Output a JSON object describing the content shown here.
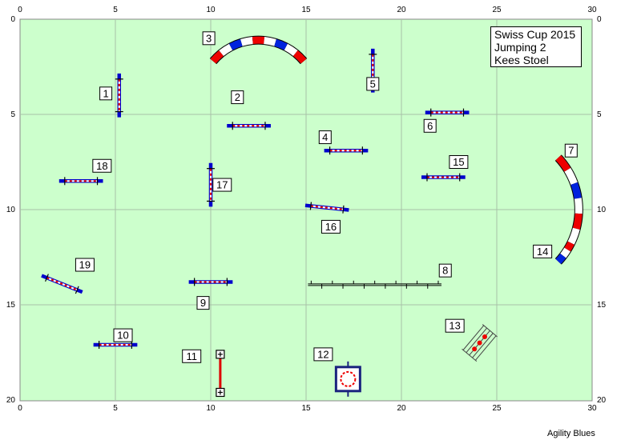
{
  "course": {
    "title_lines": [
      "Swiss Cup 2015",
      "Jumping 2",
      "Kees Stoel"
    ],
    "credit": "Agility Blues",
    "x_axis_ticks": [
      "0",
      "5",
      "10",
      "15",
      "20",
      "25",
      "30"
    ],
    "y_axis_ticks": [
      "0",
      "5",
      "10",
      "15",
      "20"
    ],
    "arena_width_m": 30,
    "arena_height_m": 20,
    "grid_step_m": 5,
    "colors": {
      "field": "#ccffcc",
      "grid": "#a8c0a8",
      "pole_red": "#dd0000",
      "wing_blue": "#0000cc",
      "tunnel_blue": "#0022dd",
      "tunnel_red": "#ee0000",
      "tunnel_white": "#ffffff"
    }
  },
  "obstacles": [
    {
      "number": "1",
      "type": "jump",
      "x": 5.2,
      "y": 4.0,
      "angle": 90,
      "length": 2.3,
      "label_x": 4.5,
      "label_y": 3.9
    },
    {
      "number": "2",
      "type": "jump",
      "x": 12.0,
      "y": 5.6,
      "angle": 0,
      "length": 2.3,
      "label_x": 11.4,
      "label_y": 4.1
    },
    {
      "number": "3",
      "type": "tunnel",
      "x": 12.5,
      "y": 4.2,
      "radius": 3.1,
      "start_angle": 220,
      "end_angle": 320,
      "label_x": 9.9,
      "label_y": 1.0
    },
    {
      "number": "4",
      "type": "jump",
      "x": 17.1,
      "y": 6.9,
      "angle": 0,
      "length": 2.3,
      "label_x": 16.0,
      "label_y": 6.2
    },
    {
      "number": "5",
      "type": "jump",
      "x": 18.5,
      "y": 2.7,
      "angle": 90,
      "length": 2.3,
      "label_x": 18.5,
      "label_y": 3.4
    },
    {
      "number": "6",
      "type": "jump",
      "x": 22.4,
      "y": 4.9,
      "angle": 0,
      "length": 2.3,
      "label_x": 21.5,
      "label_y": 5.6
    },
    {
      "number": "7",
      "type": "tunnel",
      "x": 25.3,
      "y": 10.0,
      "radius": 4.0,
      "start_angle": -43,
      "end_angle": 26,
      "label_x": 28.9,
      "label_y": 6.9
    },
    {
      "number": "8",
      "type": "long",
      "x": 18.6,
      "y": 13.9,
      "angle": 0,
      "length": 7.0,
      "label_x": 22.3,
      "label_y": 13.2
    },
    {
      "number": "9",
      "type": "jump",
      "x": 10.0,
      "y": 13.8,
      "angle": 0,
      "length": 2.3,
      "label_x": 9.6,
      "label_y": 14.9
    },
    {
      "number": "10",
      "type": "jump",
      "x": 5.0,
      "y": 17.1,
      "angle": 0,
      "length": 2.3,
      "label_x": 5.4,
      "label_y": 16.6
    },
    {
      "number": "11",
      "type": "weave",
      "x": 10.5,
      "y": 18.6,
      "angle": 90,
      "length": 2.0,
      "label_x": 9.0,
      "label_y": 17.7
    },
    {
      "number": "12",
      "type": "table",
      "x": 17.2,
      "y": 18.9,
      "label_x": 15.9,
      "label_y": 17.6
    },
    {
      "number": "13",
      "type": "tire",
      "x": 24.1,
      "y": 17.0,
      "angle": -50,
      "label_x": 22.8,
      "label_y": 16.1
    },
    {
      "number": "14",
      "type": "tunnel",
      "x": 25.3,
      "y": 10.0,
      "radius": 4.0,
      "start_angle": 26,
      "end_angle": 43,
      "label_x": 27.4,
      "label_y": 12.2
    },
    {
      "number": "15",
      "type": "jump",
      "x": 22.2,
      "y": 8.3,
      "angle": 0,
      "length": 2.3,
      "label_x": 23.0,
      "label_y": 7.5
    },
    {
      "number": "16",
      "type": "jump",
      "x": 16.1,
      "y": 9.9,
      "angle": 6,
      "length": 2.3,
      "label_x": 16.3,
      "label_y": 10.9
    },
    {
      "number": "17",
      "type": "jump",
      "x": 10.0,
      "y": 8.7,
      "angle": 90,
      "length": 2.3,
      "label_x": 10.6,
      "label_y": 8.7
    },
    {
      "number": "18",
      "type": "jump",
      "x": 3.2,
      "y": 8.5,
      "angle": 0,
      "length": 2.3,
      "label_x": 4.3,
      "label_y": 7.7
    },
    {
      "number": "19",
      "type": "jump",
      "x": 2.2,
      "y": 13.9,
      "angle": 22,
      "length": 2.3,
      "label_x": 3.4,
      "label_y": 12.9
    }
  ]
}
